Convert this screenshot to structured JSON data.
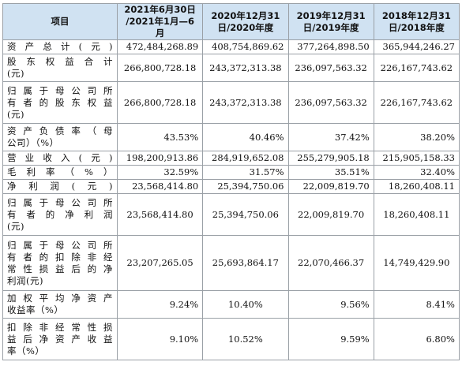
{
  "table": {
    "header": {
      "item": "项目",
      "col1": [
        "2021年6月30日",
        "/2021年1月—6月"
      ],
      "col2": [
        "2020年12月31",
        "日/2020年度"
      ],
      "col3": [
        "2019年12月31",
        "日/2019年度"
      ],
      "col4": [
        "2018年12月31",
        "日/2018年度"
      ]
    },
    "rows": [
      {
        "label": [
          "资产总计(元)"
        ],
        "values": [
          "472,484,268.89",
          "408,754,869.62",
          "377,264,898.50",
          "365,944,246.27"
        ]
      },
      {
        "label": [
          "股东权益合计",
          "(元)"
        ],
        "values": [
          "266,800,728.18",
          "243,372,313.38",
          "236,097,563.32",
          "226,167,743.62"
        ]
      },
      {
        "label": [
          "归属于母公司所",
          "有者的股东权益",
          "(元)"
        ],
        "values": [
          "266,800,728.18",
          "243,372,313.38",
          "236,097,563.32",
          "226,167,743.62"
        ]
      },
      {
        "label": [
          "资产负债率（母",
          "公司）（%）"
        ],
        "values": [
          "43.53%",
          "40.46%",
          "37.42%",
          "38.20%"
        ]
      },
      {
        "label": [
          "营业收入(元)"
        ],
        "values": [
          "198,200,913.86",
          "284,919,652.08",
          "255,279,905.18",
          "215,905,158.33"
        ]
      },
      {
        "label": [
          "毛利率（%）"
        ],
        "values": [
          "32.59%",
          "31.57%",
          "35.51%",
          "32.40%"
        ]
      },
      {
        "label": [
          "净利润(元)"
        ],
        "values": [
          "23,568,414.80",
          "25,394,750.06",
          "22,009,819.70",
          "18,260,408.11"
        ]
      },
      {
        "label": [
          "归属于母公司所",
          "有者的净利润",
          "(元)"
        ],
        "values": [
          "23,568,414.80",
          "25,394,750.06",
          "22,009,819.70",
          "18,260,408.11"
        ]
      },
      {
        "label": [
          "归属于母公司所",
          "有者的扣除非经",
          "常性损益后的净",
          "利润(元)"
        ],
        "values": [
          "23,207,265.05",
          "25,693,864.17",
          "22,070,466.37",
          "14,749,429.90"
        ]
      },
      {
        "label": [
          "加权平均净资产",
          "收益率（%）"
        ],
        "values": [
          "9.24%",
          "10.40%",
          "9.56%",
          "8.41%"
        ]
      },
      {
        "label": [
          "扣除非经常性损",
          "益后净资产收益",
          "率（%）"
        ],
        "values": [
          "9.10%",
          "10.52%",
          "9.59%",
          "6.80%"
        ]
      }
    ]
  }
}
